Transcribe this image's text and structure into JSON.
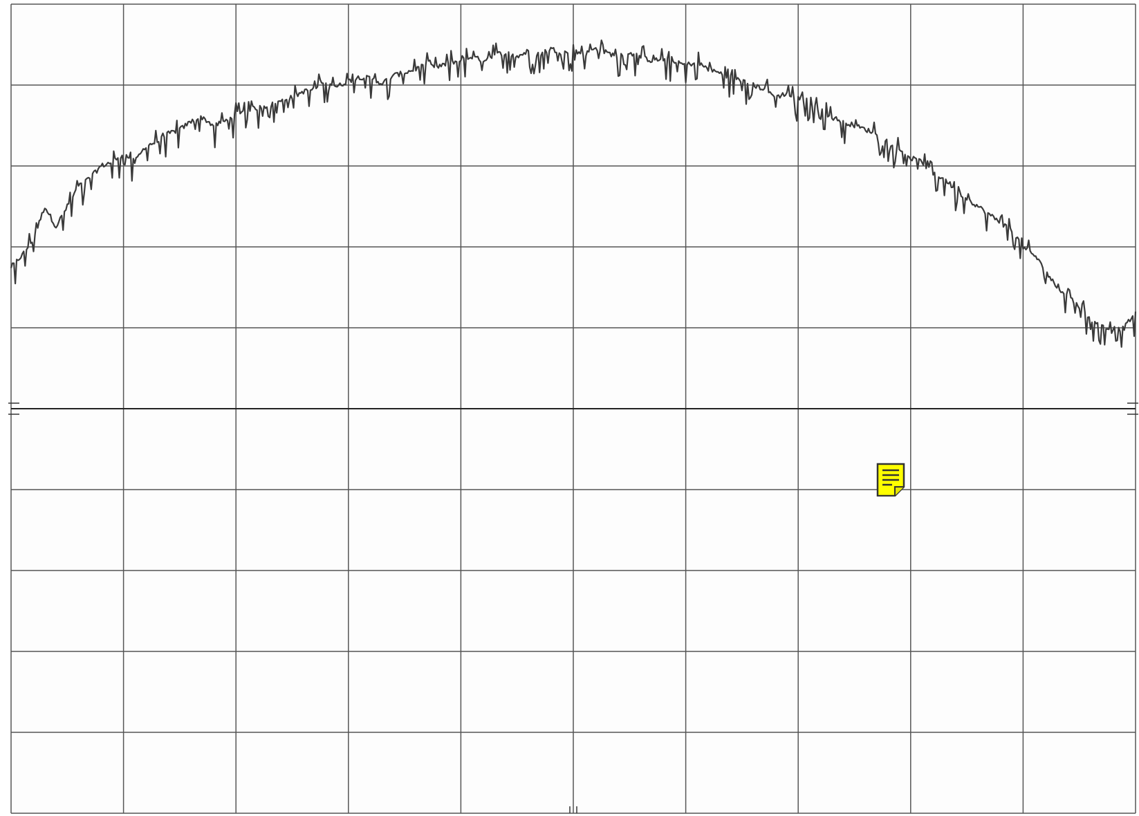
{
  "chart_data": {
    "type": "line",
    "title": "",
    "xlabel": "",
    "ylabel": "",
    "grid": true,
    "grid_divisions": {
      "x": 10,
      "y": 10
    },
    "xlim": [
      0,
      10
    ],
    "ylim": [
      -5,
      5
    ],
    "center_marker": true,
    "series": [
      {
        "line_color": "#3a3a3a",
        "x": [
          0.0,
          0.1,
          0.2,
          0.3,
          0.4,
          0.5,
          0.6,
          0.7,
          0.8,
          0.9,
          1.0,
          1.1,
          1.2,
          1.3,
          1.4,
          1.5,
          1.6,
          1.7,
          1.8,
          1.9,
          2.0,
          2.1,
          2.2,
          2.3,
          2.4,
          2.5,
          2.6,
          2.7,
          2.8,
          2.9,
          3.0,
          3.1,
          3.2,
          3.3,
          3.4,
          3.5,
          3.6,
          3.7,
          3.8,
          3.9,
          4.0,
          4.1,
          4.2,
          4.3,
          4.4,
          4.5,
          4.6,
          4.7,
          4.8,
          4.9,
          5.0,
          5.1,
          5.2,
          5.3,
          5.4,
          5.5,
          5.6,
          5.7,
          5.8,
          5.9,
          6.0,
          6.1,
          6.2,
          6.3,
          6.4,
          6.5,
          6.6,
          6.7,
          6.8,
          6.9,
          7.0,
          7.1,
          7.2,
          7.3,
          7.4,
          7.5,
          7.6,
          7.7,
          7.8,
          7.9,
          8.0,
          8.1,
          8.2,
          8.3,
          8.4,
          8.5,
          8.6,
          8.7,
          8.8,
          8.9,
          9.0,
          9.1,
          9.2,
          9.3,
          9.4,
          9.5,
          9.6,
          9.7,
          9.8,
          9.9,
          10.0
        ],
        "y": [
          1.75,
          1.9,
          2.1,
          2.5,
          2.25,
          2.5,
          2.75,
          2.85,
          3.0,
          3.05,
          3.15,
          3.05,
          3.25,
          3.3,
          3.4,
          3.45,
          3.55,
          3.6,
          3.5,
          3.55,
          3.65,
          3.7,
          3.72,
          3.75,
          3.8,
          3.85,
          3.92,
          3.95,
          4.05,
          3.98,
          4.05,
          4.1,
          4.08,
          4.02,
          4.12,
          4.15,
          4.2,
          4.25,
          4.22,
          4.28,
          4.3,
          4.35,
          4.3,
          4.38,
          4.4,
          4.35,
          4.42,
          4.38,
          4.45,
          4.4,
          4.42,
          4.38,
          4.45,
          4.4,
          4.35,
          4.4,
          4.35,
          4.3,
          4.32,
          4.28,
          4.25,
          4.28,
          4.2,
          4.15,
          4.1,
          4.05,
          4.0,
          3.95,
          3.85,
          3.9,
          3.8,
          3.75,
          3.7,
          3.6,
          3.55,
          3.5,
          3.45,
          3.4,
          3.3,
          3.2,
          3.1,
          3.05,
          2.9,
          2.85,
          2.7,
          2.6,
          2.5,
          2.4,
          2.3,
          2.2,
          2.0,
          1.9,
          1.7,
          1.5,
          1.4,
          1.25,
          1.1,
          1.05,
          0.95,
          1.0,
          1.2
        ]
      }
    ]
  },
  "note_icon": {
    "name": "sticky-note-icon",
    "color": "#ffff00"
  }
}
